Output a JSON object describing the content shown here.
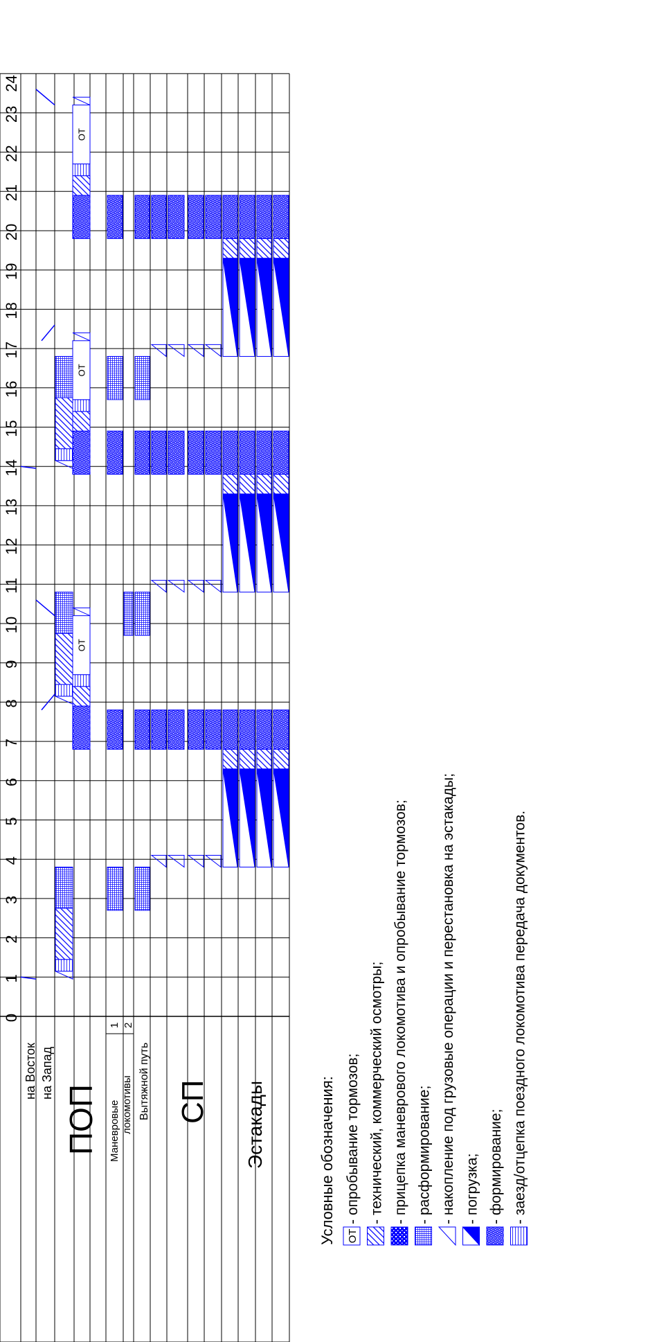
{
  "time_axis": {
    "labels": [
      "0",
      "1",
      "2",
      "3",
      "4",
      "5",
      "6",
      "7",
      "8",
      "9",
      "10",
      "11",
      "12",
      "13",
      "14",
      "15",
      "16",
      "17",
      "18",
      "19",
      "20",
      "21",
      "22",
      "23",
      "24"
    ]
  },
  "row_labels": {
    "east": "на Восток",
    "west": "на Запад",
    "pop": "ПОП",
    "shunting_1": "Маневровые",
    "shunting_2": "локомотивы",
    "shunting_num_1": "1",
    "shunting_num_2": "2",
    "exhaust_track": "Вытяжной путь",
    "sp": "СП",
    "overpasses": "Эстакады"
  },
  "brake_test_label": "ОТ",
  "legend": {
    "title": "Условные обозначения:",
    "items": [
      {
        "code": "brake",
        "symbol_text": "ОТ",
        "text": " - опробывание тормозов;"
      },
      {
        "code": "inspect",
        "text": " - технический, коммерческий осмотры;"
      },
      {
        "code": "attach",
        "text": " - прицепка маневрового локомотива и опробывание тормозов;"
      },
      {
        "code": "disband",
        "text": " - расформирование;"
      },
      {
        "code": "accum",
        "text": " - накопление под грузовые операции и перестановка на эстакады;"
      },
      {
        "code": "load",
        "text": " - погрузка;"
      },
      {
        "code": "form",
        "text": " - формирование;"
      },
      {
        "code": "depart",
        "text": " - заезд/отцепка поездного локомотива передача документов."
      }
    ]
  },
  "colors": {
    "bar": "#0000ff",
    "grid": "#000000",
    "header_bg": "#ffffff"
  }
}
